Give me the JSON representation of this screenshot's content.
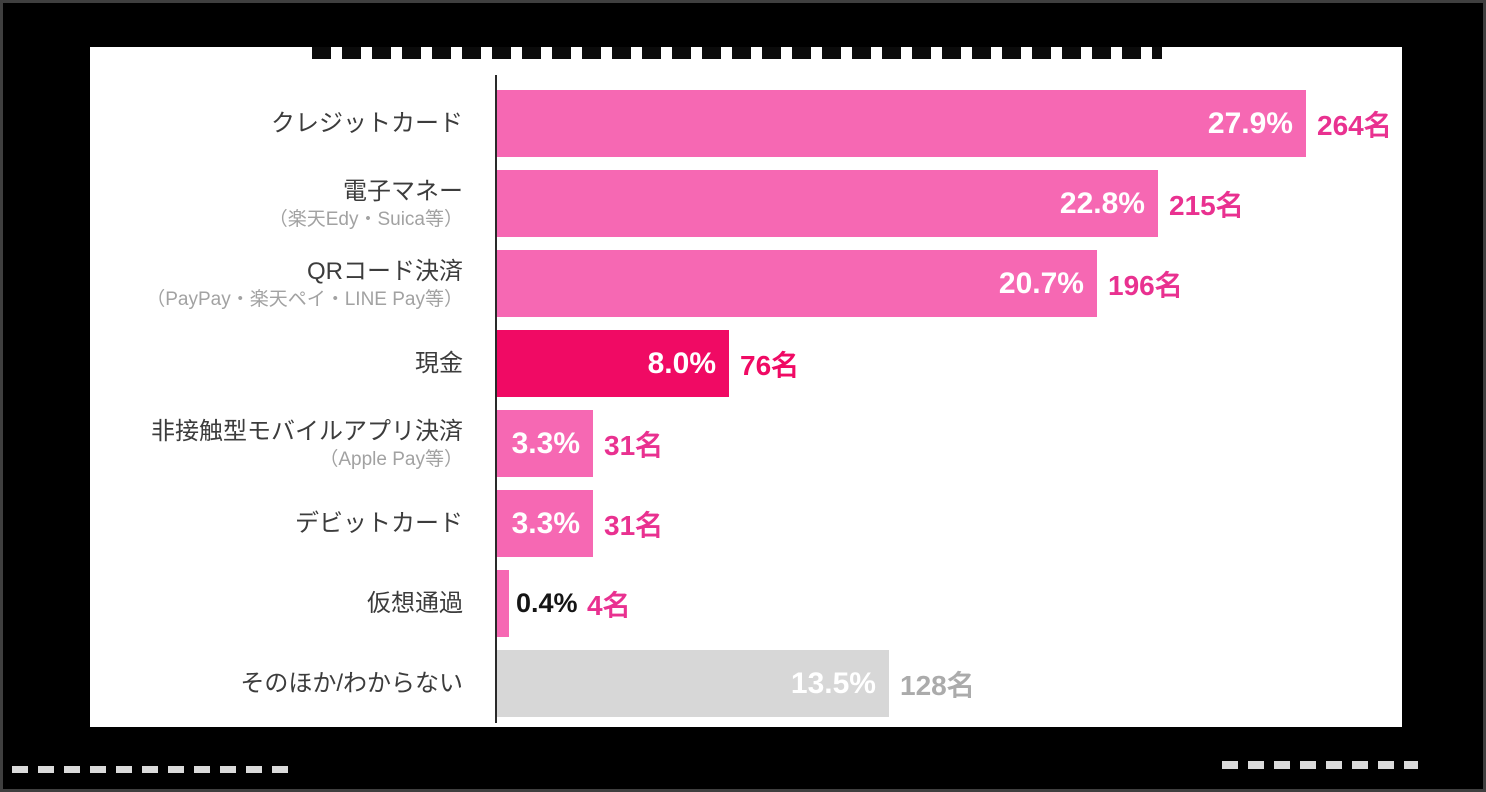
{
  "page": {
    "background_color": "#000000",
    "panel_color": "#ffffff"
  },
  "chart_data": {
    "type": "bar",
    "orientation": "horizontal",
    "percent_unit": "%",
    "count_unit": "名",
    "xlim": [
      0,
      29
    ],
    "grid": false,
    "legend": null,
    "categories": [
      "クレジットカード",
      "電子マネー",
      "QRコード決済",
      "現金",
      "非接触型モバイルアプリ決済",
      "デビットカード",
      "仮想通過",
      "そのほか/わからない"
    ],
    "values": [
      27.9,
      22.8,
      20.7,
      8.0,
      3.3,
      3.3,
      0.4,
      13.5
    ],
    "counts": [
      264,
      215,
      196,
      76,
      31,
      31,
      4,
      128
    ],
    "colors": {
      "bar_pink": "#f668b3",
      "bar_deep_pink": "#f00a64",
      "bar_gray": "#d7d7d7",
      "count_pink": "#e93190",
      "count_gray": "#ababab",
      "label_dark": "#3c3c3c",
      "label_gray": "#a2a2a2"
    },
    "rows": [
      {
        "label": "クレジットカード",
        "sublabel": "",
        "percent": "27.9%",
        "count": "264名",
        "value": 27.9,
        "bar_color": "#f668b3",
        "percent_inside": true,
        "percent_color": "#ffffff",
        "count_color": "#e93190"
      },
      {
        "label": "電子マネー",
        "sublabel": "（楽天Edy・Suica等）",
        "percent": "22.8%",
        "count": "215名",
        "value": 22.8,
        "bar_color": "#f668b3",
        "percent_inside": true,
        "percent_color": "#ffffff",
        "count_color": "#e93190"
      },
      {
        "label": "QRコード決済",
        "sublabel": "（PayPay・楽天ペイ・LINE Pay等）",
        "percent": "20.7%",
        "count": "196名",
        "value": 20.7,
        "bar_color": "#f668b3",
        "percent_inside": true,
        "percent_color": "#ffffff",
        "count_color": "#e93190"
      },
      {
        "label": "現金",
        "sublabel": "",
        "percent": "8.0%",
        "count": "76名",
        "value": 8.0,
        "bar_color": "#f00a64",
        "percent_inside": true,
        "percent_color": "#ffffff",
        "count_color": "#f00a64"
      },
      {
        "label": "非接触型モバイルアプリ決済",
        "sublabel": "（Apple Pay等）",
        "percent": "3.3%",
        "count": "31名",
        "value": 3.3,
        "bar_color": "#f668b3",
        "percent_inside": true,
        "percent_color": "#ffffff",
        "count_color": "#e93190"
      },
      {
        "label": "デビットカード",
        "sublabel": "",
        "percent": "3.3%",
        "count": "31名",
        "value": 3.3,
        "bar_color": "#f668b3",
        "percent_inside": true,
        "percent_color": "#ffffff",
        "count_color": "#e93190"
      },
      {
        "label": "仮想通過",
        "sublabel": "",
        "percent": "0.4%",
        "count": "4名",
        "value": 0.4,
        "bar_color": "#f668b3",
        "percent_inside": false,
        "percent_color": "#151515",
        "count_color": "#e93190"
      },
      {
        "label": "そのほか/わからない",
        "sublabel": "",
        "percent": "13.5%",
        "count": "128名",
        "value": 13.5,
        "bar_color": "#d7d7d7",
        "percent_inside": true,
        "percent_color": "#ffffff",
        "count_color": "#ababab"
      }
    ]
  }
}
